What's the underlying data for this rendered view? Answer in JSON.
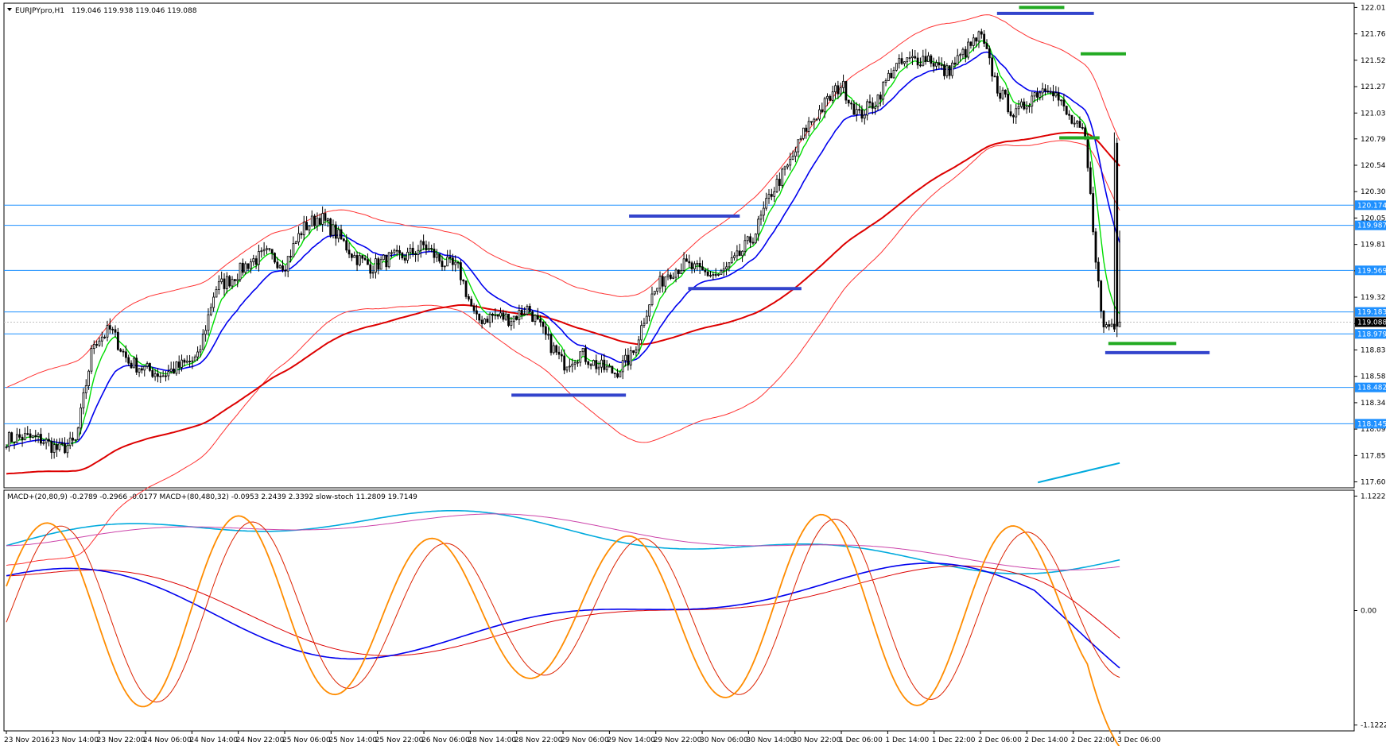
{
  "window": {
    "title": "EURJPYpro,H1",
    "ohlc_text": "119.046 119.938 119.046 119.088"
  },
  "indicator_header": "MACD+(20,80,9) -0.2789 -0.2966 -0.0177  MACD+(80,480,32) -0.0953 2.2439 2.3392  slow-stoch 11.2809 19.7149",
  "colors": {
    "background": "#ffffff",
    "bull": "#ffffff",
    "bear": "#000000",
    "fast_ma": "#00dd00",
    "mid_ma": "#0000ee",
    "slow_ma": "#dd0000",
    "band": "#ff3333",
    "level_line": "#1e90ff",
    "level_label_bg": "#1e90ff",
    "current_label_bg": "#000000",
    "stoch_fast": "#ff8c00",
    "stoch_slow": "#dd2200",
    "macd_main": "#0000ee",
    "macd_signal": "#dd0000",
    "macd_long": "#00aadd",
    "macd_long_signal": "#cc44aa",
    "green_marker": "#22aa22",
    "blue_marker": "#3344cc"
  },
  "price_axis": {
    "ticks": [
      "122.010",
      "121.765",
      "121.520",
      "121.275",
      "121.030",
      "120.790",
      "120.545",
      "120.300",
      "120.055",
      "119.810",
      "119.565",
      "119.320",
      "119.075",
      "118.830",
      "118.585",
      "118.340",
      "118.095",
      "117.850",
      "117.605"
    ],
    "levels": [
      "120.174",
      "119.987",
      "119.569",
      "119.183",
      "118.979",
      "118.482",
      "118.145"
    ],
    "current": "119.088"
  },
  "indicator_axis": {
    "ticks": [
      "1.1222",
      "0.00",
      "-1.1222"
    ]
  },
  "time_axis": [
    "23 Nov 2016",
    "23 Nov 14:00",
    "23 Nov 22:00",
    "24 Nov 06:00",
    "24 Nov 14:00",
    "24 Nov 22:00",
    "25 Nov 06:00",
    "25 Nov 14:00",
    "25 Nov 22:00",
    "26 Nov 06:00",
    "28 Nov 14:00",
    "28 Nov 22:00",
    "29 Nov 06:00",
    "29 Nov 14:00",
    "29 Nov 22:00",
    "30 Nov 06:00",
    "30 Nov 14:00",
    "30 Nov 22:00",
    "1 Dec 06:00",
    "1 Dec 14:00",
    "1 Dec 22:00",
    "2 Dec 06:00",
    "2 Dec 14:00",
    "2 Dec 22:00",
    "3 Dec 06:00"
  ],
  "price_anchors": [
    118.0,
    118.02,
    118.0,
    117.9,
    117.98,
    118.9,
    119.02,
    118.72,
    118.65,
    118.6,
    118.68,
    118.75,
    119.4,
    119.5,
    119.65,
    119.72,
    119.62,
    119.95,
    120.07,
    119.9,
    119.7,
    119.6,
    119.68,
    119.7,
    119.8,
    119.65,
    119.58,
    119.1,
    119.15,
    119.12,
    119.22,
    118.95,
    118.7,
    118.8,
    118.68,
    118.62,
    118.78,
    119.3,
    119.55,
    119.62,
    119.55,
    119.52,
    119.68,
    119.9,
    120.3,
    120.55,
    120.9,
    121.1,
    121.3,
    121.0,
    121.15,
    121.45,
    121.52,
    121.55,
    121.4,
    121.58,
    121.75,
    121.25,
    121.0,
    121.2,
    121.3,
    121.0,
    120.8,
    119.05,
    119.088
  ],
  "markers": {
    "green": [
      {
        "t": 0.823,
        "p": 122.01,
        "w": 0.036
      },
      {
        "t": 0.872,
        "p": 121.58,
        "w": 0.036
      },
      {
        "t": 0.853,
        "p": 120.8,
        "w": 0.032
      },
      {
        "t": 0.903,
        "p": 118.89,
        "w": 0.054
      }
    ],
    "blue": [
      {
        "t": 0.826,
        "p": 121.955,
        "w": 0.077
      },
      {
        "t": 0.539,
        "p": 120.073,
        "w": 0.088
      },
      {
        "t": 0.587,
        "p": 119.4,
        "w": 0.09
      },
      {
        "t": 0.447,
        "p": 118.41,
        "w": 0.091
      },
      {
        "t": 0.915,
        "p": 118.805,
        "w": 0.083
      }
    ]
  },
  "chart_data": {
    "type": "candlestick",
    "symbol": "EURJPYpro",
    "timeframe": "H1",
    "last_bar": {
      "open": 119.046,
      "high": 119.938,
      "low": 119.046,
      "close": 119.088
    },
    "ylim": [
      117.55,
      122.05
    ],
    "indicator_ylim": [
      -1.18,
      1.18
    ]
  }
}
